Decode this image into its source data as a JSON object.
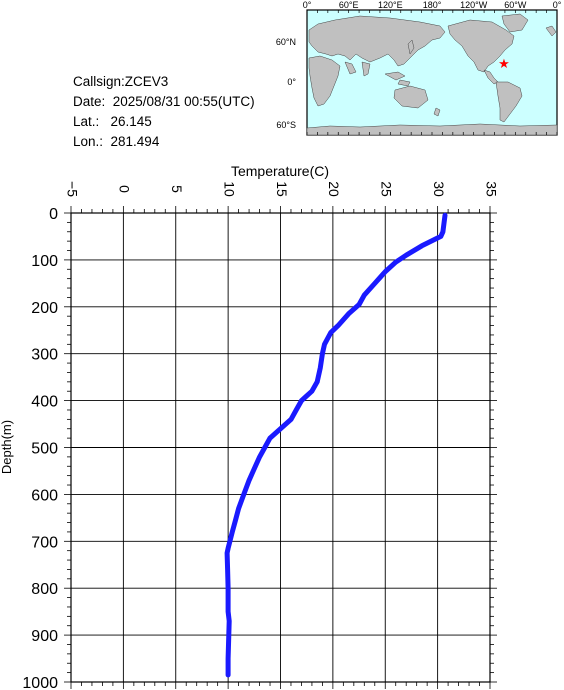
{
  "info": {
    "callsign": "Callsign:ZCEV3",
    "date": "Date:  2025/08/31 00:55(UTC)",
    "lat": "Lat.:   26.145",
    "lon": "Lon.:  281.494"
  },
  "map": {
    "top_labels": [
      "0°",
      "60°E",
      "120°E",
      "180°",
      "120°W",
      "60°W",
      "0°"
    ],
    "left_labels": [
      "60°N",
      "0°",
      "60°S"
    ],
    "ocean_color": "#ccffff",
    "land_color": "#c0c0c0",
    "marker_color": "#ff0000",
    "marker_icon": "star-icon"
  },
  "chart_data": {
    "type": "line",
    "xlabel": "Temperature(C)",
    "ylabel": "Depth(m)",
    "xlim": [
      -5,
      35
    ],
    "ylim": [
      1000,
      0
    ],
    "x_ticks": [
      -5,
      0,
      5,
      10,
      15,
      20,
      25,
      30,
      35
    ],
    "y_ticks": [
      0,
      100,
      200,
      300,
      400,
      500,
      600,
      700,
      800,
      900,
      1000
    ],
    "grid": true,
    "line_color": "#1a1aff",
    "series": [
      {
        "x": [
          30.7,
          30.5,
          30.3,
          28.5,
          27.0,
          26.0,
          25.0,
          24.0,
          23.0,
          22.5,
          21.5,
          20.5,
          19.8,
          19.2,
          19.0,
          18.8,
          18.5,
          18.0,
          17.5,
          17.0,
          16.5,
          16.0,
          15.0,
          14.0,
          13.5,
          13.0,
          12.5,
          12.0,
          11.5,
          11.0,
          10.7,
          10.4,
          10.0,
          9.9,
          9.95,
          10.0,
          10.0,
          10.1,
          10.0,
          10.0
        ],
        "y": [
          5,
          40,
          50,
          70,
          90,
          105,
          125,
          150,
          175,
          195,
          215,
          240,
          255,
          280,
          300,
          330,
          360,
          380,
          390,
          400,
          420,
          440,
          460,
          480,
          500,
          520,
          545,
          570,
          600,
          630,
          655,
          680,
          715,
          725,
          760,
          800,
          850,
          870,
          950,
          985
        ]
      }
    ]
  }
}
